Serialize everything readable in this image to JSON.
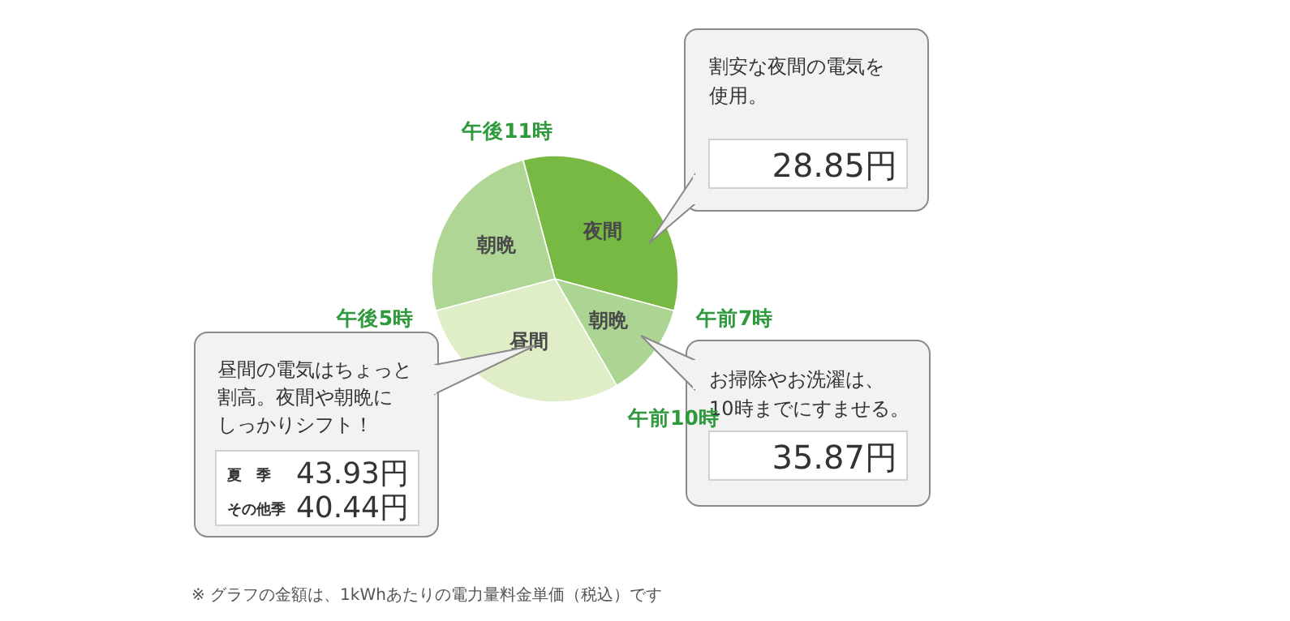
{
  "chart_data": {
    "type": "pie",
    "categories": [
      "夜間",
      "朝晩",
      "昼間",
      "朝晩"
    ],
    "values": [
      33.33,
      12.5,
      29.17,
      25
    ],
    "colors": [
      "#78b944",
      "#acd593",
      "#e0eec8",
      "#b0d696"
    ],
    "annotations": [
      "午後11時",
      "午前7時",
      "午前10時",
      "午後5時",
      "割安な夜間の電気を使用。",
      "28.85円",
      "お掃除やお洗濯は、10時までにすませる。",
      "35.87円",
      "昼間の電気はちょっと割高。夜間や朝晩にしっかりシフト！",
      "夏　季",
      "43.93円",
      "その他季",
      "40.44円",
      "※ グラフの金額は、1kWhあたりの電力量料金単価（税込）です"
    ]
  }
}
